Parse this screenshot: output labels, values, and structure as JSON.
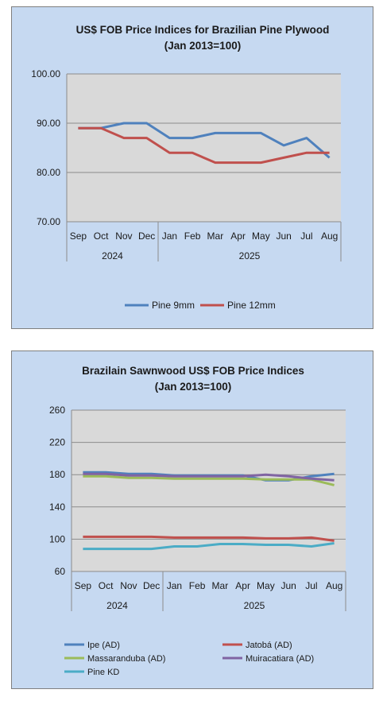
{
  "chart_data": [
    {
      "type": "line",
      "title": "US$ FOB Price Indices for Brazilian  Pine Plywood",
      "subtitle": "(Jan 2013=100)",
      "categories": [
        "Sep",
        "Oct",
        "Nov",
        "Dec",
        "Jan",
        "Feb",
        "Mar",
        "Apr",
        "May",
        "Jun",
        "Jul",
        "Aug"
      ],
      "year_groups": [
        {
          "label": "2024",
          "span": 4
        },
        {
          "label": "2025",
          "span": 8
        }
      ],
      "yticks": [
        "70.00",
        "80.00",
        "90.00",
        "100.00"
      ],
      "ylim": [
        70,
        100
      ],
      "grid": true,
      "legend_position": "bottom",
      "series": [
        {
          "name": "Pine 9mm",
          "color": "#4f81bd",
          "values": [
            89,
            89,
            90,
            90,
            87,
            87,
            88,
            88,
            88,
            85.5,
            87,
            83
          ]
        },
        {
          "name": "Pine 12mm",
          "color": "#c0504d",
          "values": [
            89,
            89,
            87,
            87,
            84,
            84,
            82,
            82,
            82,
            83,
            84,
            84
          ]
        }
      ]
    },
    {
      "type": "line",
      "title": "Brazilain Sawnwood US$ FOB Price Indices",
      "subtitle": "(Jan 2013=100)",
      "categories": [
        "Sep",
        "Oct",
        "Nov",
        "Dec",
        "Jan",
        "Feb",
        "Mar",
        "Apr",
        "May",
        "Jun",
        "Jul",
        "Aug"
      ],
      "year_groups": [
        {
          "label": "2024",
          "span": 4
        },
        {
          "label": "2025",
          "span": 8
        }
      ],
      "yticks": [
        "60",
        "100",
        "140",
        "180",
        "220",
        "260"
      ],
      "ylim": [
        60,
        260
      ],
      "grid": true,
      "legend_position": "bottom",
      "series": [
        {
          "name": "Ipe (AD)",
          "color": "#4f81bd",
          "values": [
            183,
            183,
            181,
            181,
            179,
            179,
            179,
            179,
            173,
            173,
            178,
            181
          ]
        },
        {
          "name": "Jatobá (AD)",
          "color": "#c0504d",
          "values": [
            103,
            103,
            103,
            103,
            102,
            102,
            102,
            102,
            101,
            101,
            102,
            98
          ]
        },
        {
          "name": "Massaranduba (AD)",
          "color": "#9bbb59",
          "values": [
            178,
            178,
            176,
            176,
            175,
            175,
            175,
            175,
            174,
            174,
            174,
            167
          ]
        },
        {
          "name": "Muiracatiara (AD)",
          "color": "#8064a2",
          "values": [
            181,
            181,
            179,
            179,
            178,
            178,
            178,
            178,
            180,
            178,
            175,
            173
          ]
        },
        {
          "name": "Pine KD",
          "color": "#4bacc6",
          "values": [
            88,
            88,
            88,
            88,
            91,
            91,
            94,
            94,
            93,
            93,
            91,
            95
          ]
        }
      ]
    }
  ]
}
